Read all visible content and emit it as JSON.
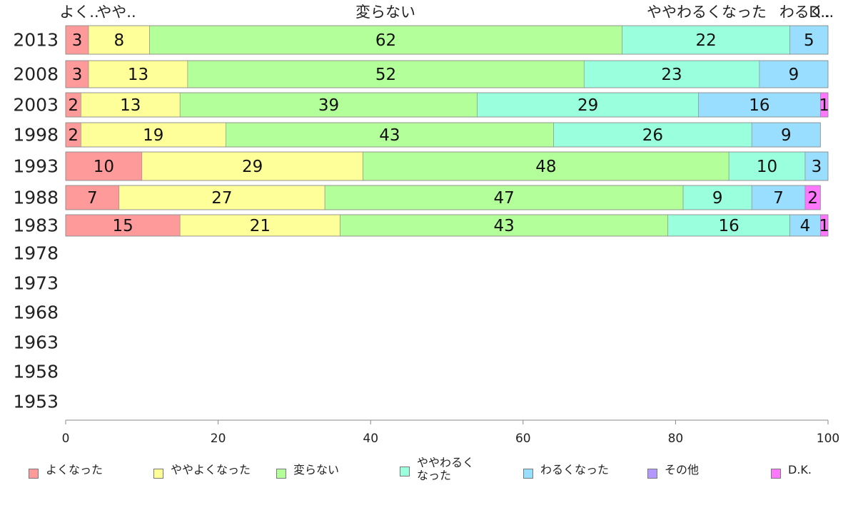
{
  "chart_data": {
    "type": "bar",
    "orientation": "horizontal",
    "stacked": true,
    "categories": [
      "2013",
      "2008",
      "2003",
      "1998",
      "1993",
      "1988",
      "1983",
      "1978",
      "1973",
      "1968",
      "1963",
      "1958",
      "1953"
    ],
    "series": [
      {
        "name": "よくなった",
        "color": "#ff9a9a",
        "values": [
          3,
          3,
          2,
          2,
          10,
          7,
          15,
          null,
          null,
          null,
          null,
          null,
          null
        ]
      },
      {
        "name": "ややよくなった",
        "color": "#ffff99",
        "values": [
          8,
          13,
          13,
          19,
          29,
          27,
          21,
          null,
          null,
          null,
          null,
          null,
          null
        ]
      },
      {
        "name": "変らない",
        "color": "#b3ff99",
        "values": [
          62,
          52,
          39,
          43,
          48,
          47,
          43,
          null,
          null,
          null,
          null,
          null,
          null
        ]
      },
      {
        "name": "ややわるくなった",
        "color": "#99ffdd",
        "values": [
          22,
          23,
          29,
          26,
          10,
          9,
          16,
          null,
          null,
          null,
          null,
          null,
          null
        ]
      },
      {
        "name": "わるくなった",
        "color": "#99ddff",
        "values": [
          5,
          9,
          16,
          9,
          3,
          7,
          4,
          null,
          null,
          null,
          null,
          null,
          null
        ]
      },
      {
        "name": "その他",
        "color": "#b399ff",
        "values": [
          0,
          0,
          0,
          0,
          0,
          0,
          0,
          null,
          null,
          null,
          null,
          null,
          null
        ]
      },
      {
        "name": "D.K.",
        "color": "#ff77ff",
        "values": [
          0,
          0,
          1,
          0,
          0,
          2,
          1,
          null,
          null,
          null,
          null,
          null,
          null
        ]
      }
    ],
    "top_labels": [
      "よく..",
      "やや..",
      "変らない",
      "ややわるくなった",
      "わるく..",
      "D.."
    ],
    "legend_labels": [
      "よくなった",
      "ややよくなった",
      "変らない",
      "ややわるく\nなった",
      "わるくなった",
      "その他",
      "D.K."
    ],
    "x_ticks": [
      0,
      20,
      40,
      60,
      80,
      100
    ],
    "xlim": [
      0,
      100
    ],
    "title": "",
    "xlabel": "",
    "ylabel": "",
    "grid": false,
    "legend_position": "bottom"
  }
}
